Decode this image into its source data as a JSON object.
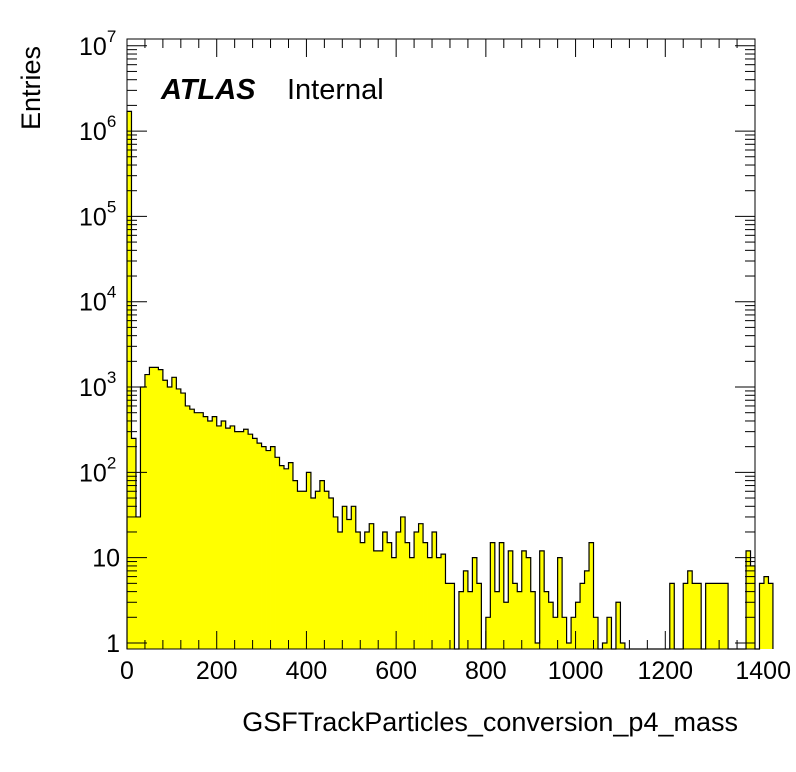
{
  "chart_data": {
    "type": "bar",
    "histogram": true,
    "fill_color": "#ffff00",
    "line_color": "#000000",
    "xlabel": "GSFTrackParticles_conversion_p4_mass",
    "ylabel": "Entries",
    "xlim": [
      0,
      1400
    ],
    "ylim": [
      0.85,
      12000000
    ],
    "yscale": "log",
    "grid": false,
    "bin_width": 10,
    "xticks": [
      0,
      200,
      400,
      600,
      800,
      1000,
      1200,
      1400
    ],
    "xtick_labels": [
      "0",
      "200",
      "400",
      "600",
      "800",
      "1000",
      "1200",
      "1400"
    ],
    "yticks": [
      {
        "value": 1,
        "base": "1",
        "exp": ""
      },
      {
        "value": 10,
        "base": "10",
        "exp": ""
      },
      {
        "value": 100,
        "base": "10",
        "exp": "2"
      },
      {
        "value": 1000,
        "base": "10",
        "exp": "3"
      },
      {
        "value": 10000,
        "base": "10",
        "exp": "4"
      },
      {
        "value": 100000,
        "base": "10",
        "exp": "5"
      },
      {
        "value": 1000000,
        "base": "10",
        "exp": "6"
      },
      {
        "value": 10000000,
        "base": "10",
        "exp": "7"
      }
    ],
    "label_atlas": "ATLAS",
    "label_status": "Internal",
    "values": [
      1700000,
      250,
      30,
      1000,
      1400,
      1700,
      1700,
      1600,
      1200,
      1000,
      1300,
      950,
      850,
      600,
      550,
      500,
      500,
      450,
      400,
      450,
      350,
      400,
      330,
      350,
      300,
      300,
      320,
      280,
      250,
      220,
      200,
      180,
      200,
      150,
      120,
      110,
      130,
      80,
      60,
      60,
      100,
      50,
      60,
      80,
      60,
      50,
      30,
      20,
      40,
      28,
      40,
      20,
      15,
      20,
      25,
      12,
      12,
      20,
      15,
      10,
      20,
      30,
      15,
      10,
      20,
      25,
      15,
      10,
      20,
      10,
      11,
      5,
      5,
      0,
      4,
      7,
      4,
      10,
      5,
      0,
      2,
      15,
      4,
      15,
      3,
      12,
      5,
      4,
      12,
      10,
      4,
      1,
      12,
      4,
      3,
      2,
      10,
      2,
      1,
      2,
      3,
      5,
      7,
      15,
      2,
      0,
      1,
      2,
      0,
      3,
      1,
      0,
      0,
      0,
      0,
      0,
      0,
      0,
      0,
      0,
      0,
      5,
      0,
      0,
      5,
      7,
      5,
      5,
      0,
      5,
      5,
      5,
      5,
      5,
      0,
      0,
      0,
      0,
      12,
      8,
      0,
      5,
      6,
      5
    ]
  }
}
